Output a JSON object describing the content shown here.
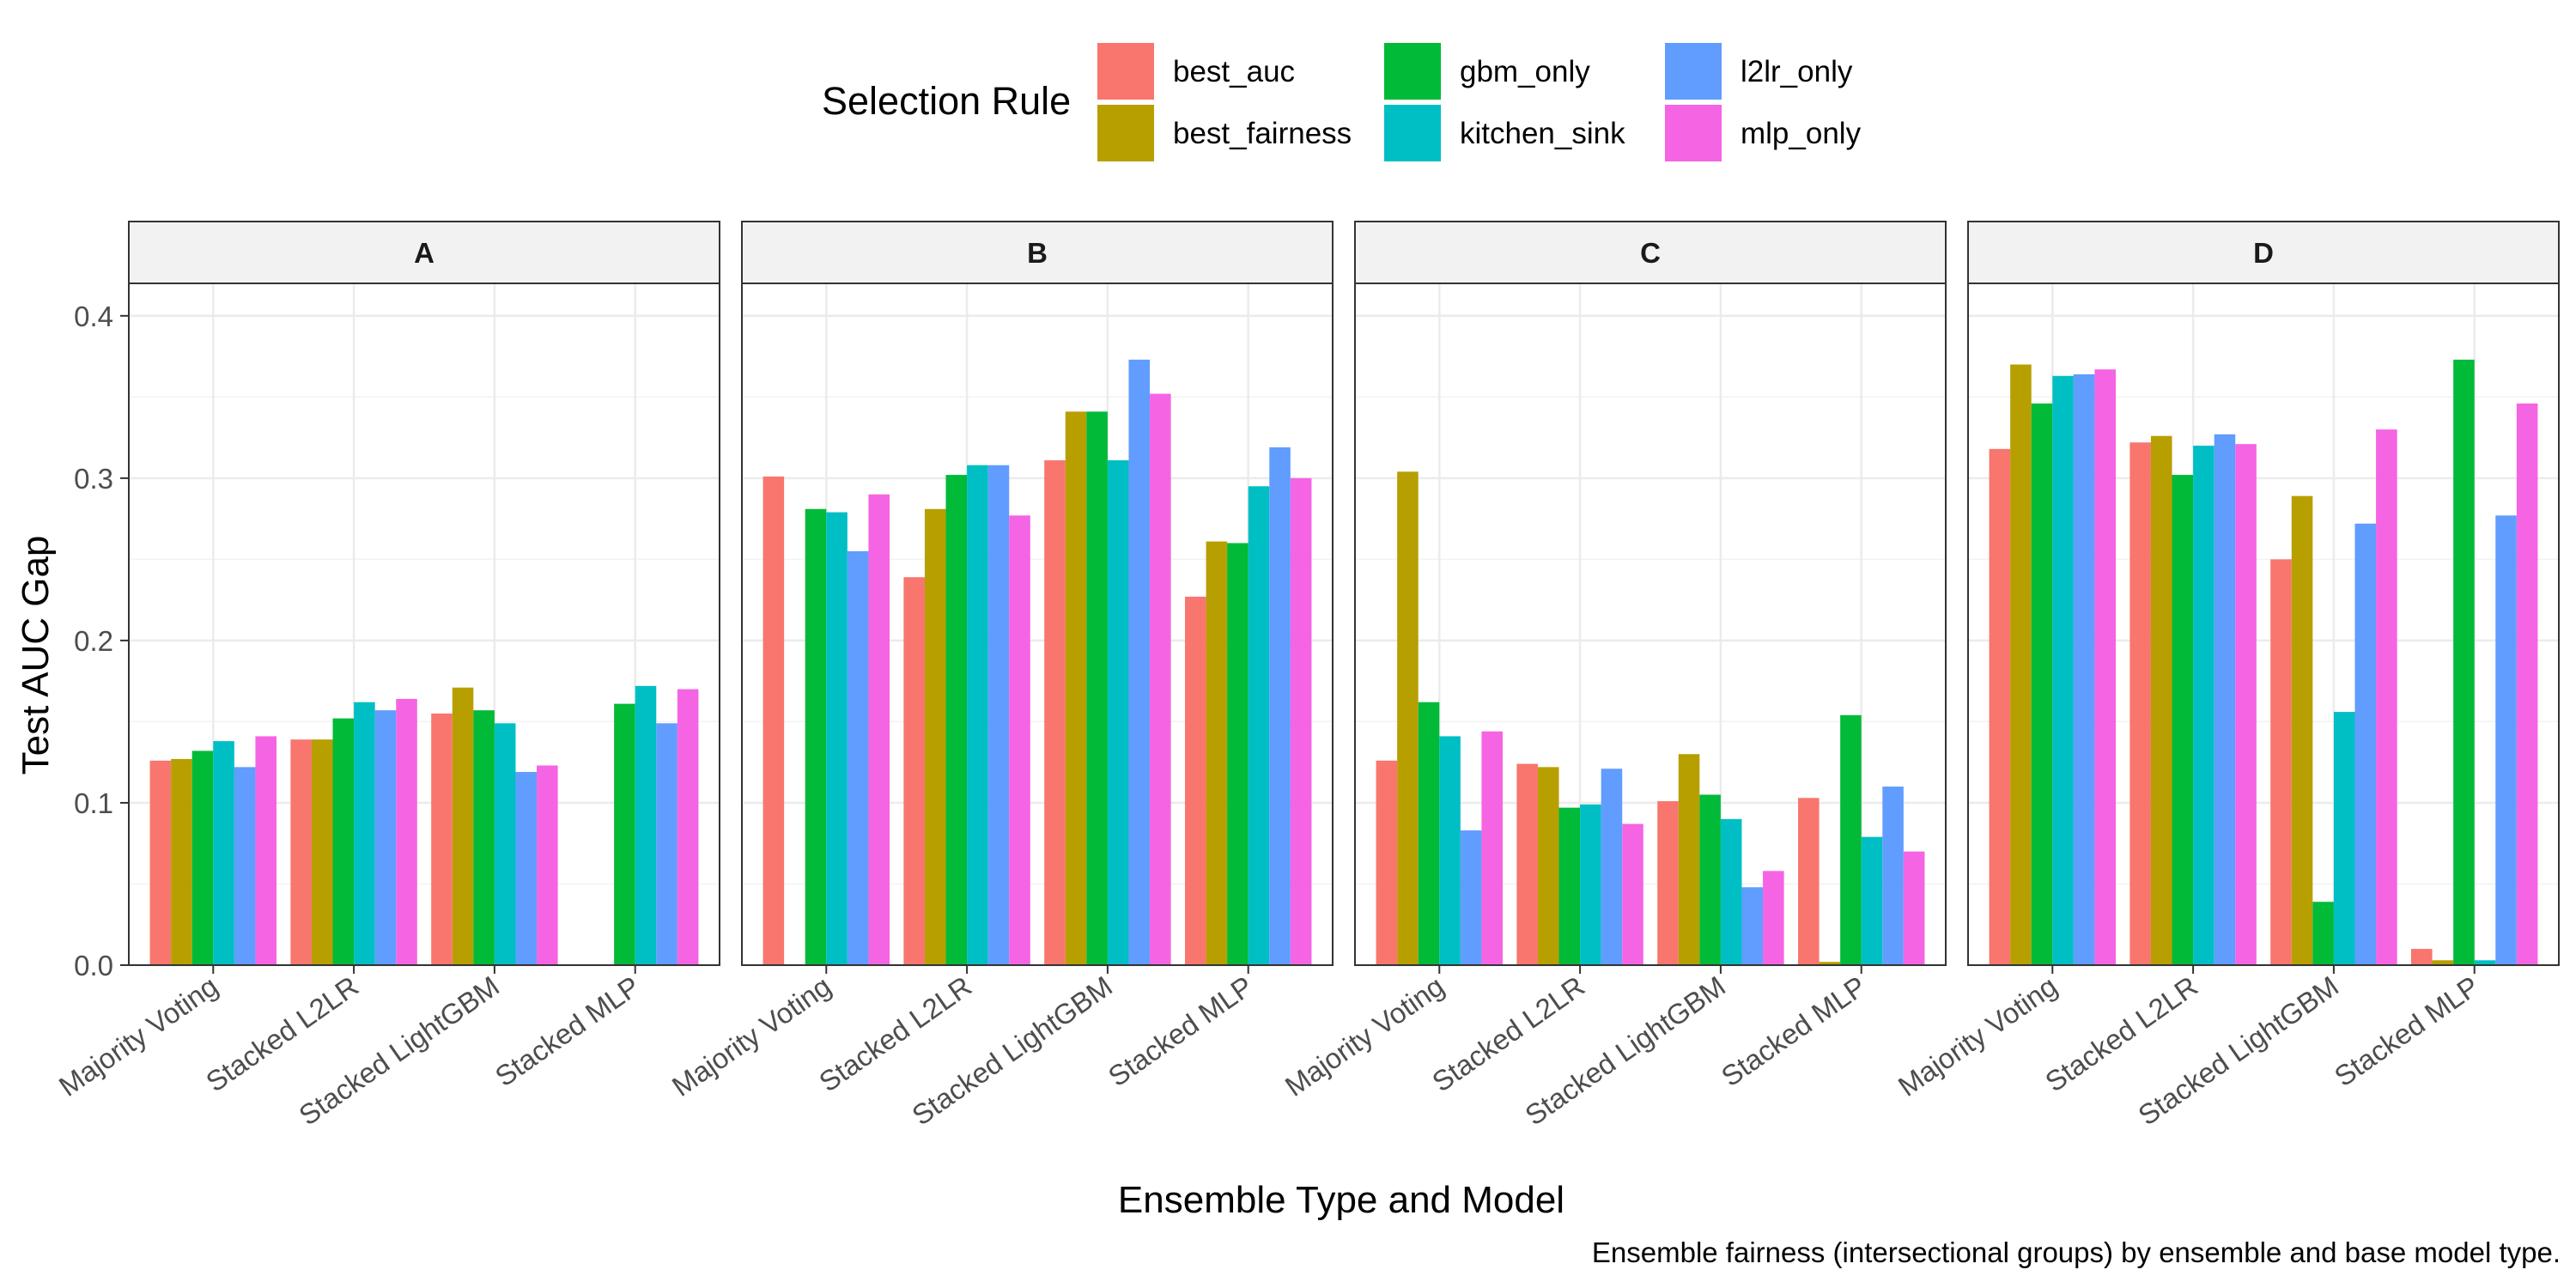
{
  "chart_data": {
    "type": "bar",
    "xlabel": "Ensemble Type and Model",
    "ylabel": "Test AUC Gap",
    "caption": "Ensemble fairness (intersectional groups) by ensemble and base model type.",
    "ylim": [
      0,
      0.42
    ],
    "yticks": [
      "0.0",
      "0.1",
      "0.2",
      "0.3",
      "0.4"
    ],
    "ytick_values": [
      0,
      0.1,
      0.2,
      0.3,
      0.4
    ],
    "grid": true,
    "legend": {
      "title": "Selection Rule",
      "position": "top"
    },
    "categories": [
      "Majority Voting",
      "Stacked L2LR",
      "Stacked LightGBM",
      "Stacked MLP"
    ],
    "series": [
      {
        "name": "best_auc",
        "color": "#F8766D"
      },
      {
        "name": "best_fairness",
        "color": "#B79F00"
      },
      {
        "name": "gbm_only",
        "color": "#00BA38"
      },
      {
        "name": "kitchen_sink",
        "color": "#00BFC4"
      },
      {
        "name": "l2lr_only",
        "color": "#619CFF"
      },
      {
        "name": "mlp_only",
        "color": "#F564E3"
      }
    ],
    "panels": [
      {
        "name": "A",
        "values": [
          [
            0.126,
            0.127,
            0.132,
            0.138,
            0.122,
            0.141
          ],
          [
            0.139,
            0.139,
            0.152,
            0.162,
            0.157,
            0.164
          ],
          [
            0.155,
            0.171,
            0.157,
            0.149,
            0.119,
            0.123
          ],
          [
            0.0,
            0.0,
            0.161,
            0.172,
            0.149,
            0.17
          ]
        ]
      },
      {
        "name": "B",
        "values": [
          [
            0.301,
            0.0,
            0.281,
            0.279,
            0.255,
            0.29
          ],
          [
            0.239,
            0.281,
            0.302,
            0.308,
            0.308,
            0.277
          ],
          [
            0.311,
            0.341,
            0.341,
            0.311,
            0.373,
            0.352
          ],
          [
            0.227,
            0.261,
            0.26,
            0.295,
            0.319,
            0.3
          ]
        ]
      },
      {
        "name": "C",
        "values": [
          [
            0.126,
            0.304,
            0.162,
            0.141,
            0.083,
            0.144
          ],
          [
            0.124,
            0.122,
            0.097,
            0.099,
            0.121,
            0.087
          ],
          [
            0.101,
            0.13,
            0.105,
            0.09,
            0.048,
            0.058
          ],
          [
            0.103,
            0.002,
            0.154,
            0.079,
            0.11,
            0.07
          ]
        ]
      },
      {
        "name": "D",
        "values": [
          [
            0.318,
            0.37,
            0.346,
            0.363,
            0.364,
            0.367
          ],
          [
            0.322,
            0.326,
            0.302,
            0.32,
            0.327,
            0.321
          ],
          [
            0.25,
            0.289,
            0.039,
            0.156,
            0.272,
            0.33
          ],
          [
            0.01,
            0.003,
            0.373,
            0.003,
            0.277,
            0.346
          ]
        ]
      }
    ]
  }
}
